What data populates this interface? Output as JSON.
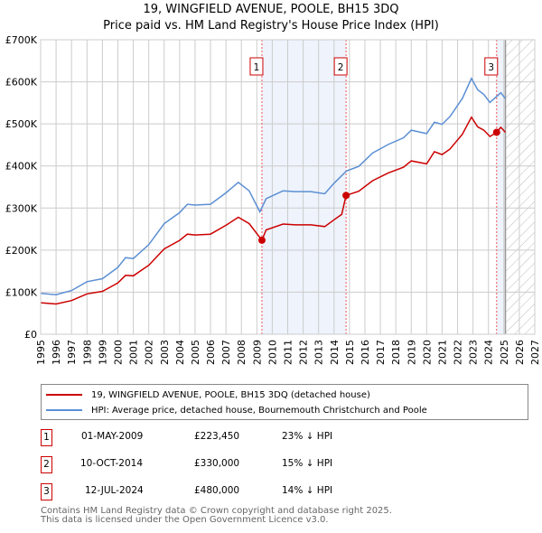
{
  "title": "19, WINGFIELD AVENUE, POOLE, BH15 3DQ",
  "subtitle": "Price paid vs. HM Land Registry's House Price Index (HPI)",
  "chart_data": {
    "type": "line",
    "xlim": [
      1995,
      2027
    ],
    "ylim": [
      0,
      700000
    ],
    "yticks": [
      {
        "v": 0,
        "label": "£0"
      },
      {
        "v": 100000,
        "label": "£100K"
      },
      {
        "v": 200000,
        "label": "£200K"
      },
      {
        "v": 300000,
        "label": "£300K"
      },
      {
        "v": 400000,
        "label": "£400K"
      },
      {
        "v": 500000,
        "label": "£500K"
      },
      {
        "v": 600000,
        "label": "£600K"
      },
      {
        "v": 700000,
        "label": "£700K"
      }
    ],
    "xticks": [
      "1995",
      "1996",
      "1997",
      "1998",
      "1999",
      "2000",
      "2001",
      "2002",
      "2003",
      "2004",
      "2005",
      "2006",
      "2007",
      "2008",
      "2009",
      "2010",
      "2011",
      "2012",
      "2013",
      "2014",
      "2015",
      "2016",
      "2017",
      "2018",
      "2019",
      "2020",
      "2021",
      "2022",
      "2023",
      "2024",
      "2025",
      "2026",
      "2027"
    ],
    "series": [
      {
        "name": "19, WINGFIELD AVENUE, POOLE, BH15 3DQ (detached house)",
        "color": "#cc0000",
        "x": [
          1995,
          1996,
          1997,
          1998,
          1999,
          2000,
          2000.5,
          2001,
          2002,
          2003,
          2004,
          2004.5,
          2005,
          2006,
          2007,
          2007.8,
          2008.5,
          2009.33,
          2009.6,
          2010.7,
          2011.5,
          2012.5,
          2013.4,
          2014,
          2014.5,
          2014.78,
          2015.6,
          2016.5,
          2017.5,
          2018.5,
          2019,
          2020,
          2020.5,
          2021,
          2021.5,
          2022.3,
          2022.9,
          2023.3,
          2023.7,
          2024.1,
          2024.53,
          2024.8,
          2025.1
        ],
        "y": [
          75000,
          72000,
          80000,
          96000,
          102000,
          122000,
          140000,
          139000,
          164000,
          203000,
          223000,
          238000,
          236000,
          238000,
          259000,
          278000,
          263000,
          223450,
          248000,
          262000,
          260000,
          260000,
          256000,
          272000,
          285000,
          330000,
          340000,
          365000,
          383000,
          397000,
          412000,
          405000,
          434000,
          427000,
          440000,
          475000,
          516000,
          493000,
          485000,
          470000,
          480000,
          492000,
          480000
        ]
      },
      {
        "name": "HPI: Average price, detached house, Bournemouth Christchurch and Poole",
        "color": "#5b8fd4",
        "x": [
          1995,
          1996,
          1997,
          1998,
          1999,
          2000,
          2000.5,
          2001,
          2002,
          2003,
          2004,
          2004.5,
          2005,
          2006,
          2007,
          2007.8,
          2008.5,
          2009.2,
          2009.6,
          2010.7,
          2011.5,
          2012.5,
          2013.4,
          2014,
          2014.8,
          2015.6,
          2016.5,
          2017.5,
          2018.5,
          2019,
          2020,
          2020.5,
          2021,
          2021.5,
          2022.3,
          2022.9,
          2023.3,
          2023.7,
          2024.1,
          2024.4,
          2024.8,
          2025.1
        ],
        "y": [
          97000,
          94000,
          104000,
          125000,
          132000,
          159000,
          182000,
          180000,
          213000,
          263000,
          289000,
          309000,
          307000,
          309000,
          336000,
          361000,
          341000,
          291000,
          322000,
          341000,
          339000,
          339000,
          334000,
          359000,
          388000,
          399000,
          431000,
          451000,
          467000,
          485000,
          477000,
          504000,
          499000,
          517000,
          560000,
          608000,
          581000,
          570000,
          551000,
          561000,
          574000,
          560000
        ]
      }
    ],
    "sales": [
      {
        "n": "1",
        "x": 2009.33,
        "y": 223450
      },
      {
        "n": "2",
        "x": 2014.78,
        "y": 330000
      },
      {
        "n": "3",
        "x": 2024.53,
        "y": 480000
      }
    ],
    "forecast_start": 2025.1
  },
  "legend": [
    {
      "label": "19, WINGFIELD AVENUE, POOLE, BH15 3DQ (detached house)",
      "color": "#cc0000"
    },
    {
      "label": "HPI: Average price, detached house, Bournemouth Christchurch and Poole",
      "color": "#5b8fd4"
    }
  ],
  "table": [
    {
      "n": "1",
      "date": "01-MAY-2009",
      "price": "£223,450",
      "diff": "23% ↓ HPI"
    },
    {
      "n": "2",
      "date": "10-OCT-2014",
      "price": "£330,000",
      "diff": "15% ↓ HPI"
    },
    {
      "n": "3",
      "date": "12-JUL-2024",
      "price": "£480,000",
      "diff": "14% ↓ HPI"
    }
  ],
  "footer": [
    "Contains HM Land Registry data © Crown copyright and database right 2025.",
    "This data is licensed under the Open Government Licence v3.0."
  ]
}
